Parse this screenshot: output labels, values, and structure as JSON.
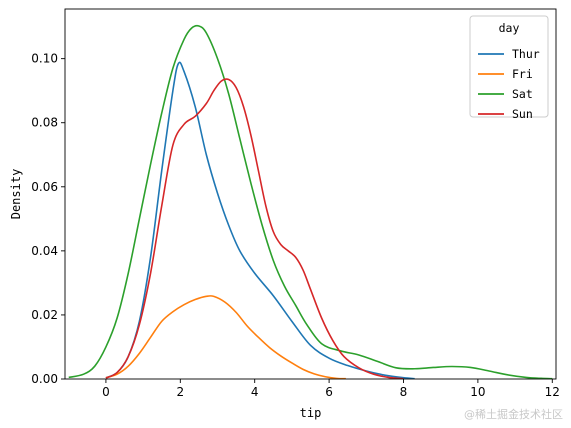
{
  "chart_data": {
    "type": "line",
    "xlabel": "tip",
    "ylabel": "Density",
    "xlim": [
      -1.1,
      12.1
    ],
    "ylim": [
      0,
      0.1155
    ],
    "x_ticks": [
      0,
      2,
      4,
      6,
      8,
      10,
      12
    ],
    "x_tick_labels": [
      "0",
      "2",
      "4",
      "6",
      "8",
      "10",
      "12"
    ],
    "y_ticks": [
      0,
      0.02,
      0.04,
      0.06,
      0.08,
      0.1
    ],
    "y_tick_labels": [
      "0.00",
      "0.02",
      "0.04",
      "0.06",
      "0.08",
      "0.10"
    ],
    "grid": false,
    "legend": {
      "title": "day",
      "position": "top-right"
    },
    "series": [
      {
        "name": "Thur",
        "color": "#1f77b4",
        "x": [
          0.0,
          0.3,
          0.6,
          0.9,
          1.2,
          1.5,
          1.8,
          1.95,
          2.1,
          2.4,
          2.7,
          3.0,
          3.3,
          3.6,
          4.0,
          4.5,
          5.0,
          5.5,
          6.0,
          6.5,
          7.0,
          7.5,
          8.0,
          8.3
        ],
        "y": [
          0.0004,
          0.002,
          0.007,
          0.018,
          0.038,
          0.065,
          0.09,
          0.0985,
          0.096,
          0.085,
          0.07,
          0.058,
          0.048,
          0.04,
          0.033,
          0.026,
          0.018,
          0.0105,
          0.0065,
          0.0042,
          0.0025,
          0.0012,
          0.0004,
          0.0001
        ]
      },
      {
        "name": "Fri",
        "color": "#ff7f0e",
        "x": [
          0.0,
          0.3,
          0.6,
          0.9,
          1.2,
          1.5,
          1.8,
          2.1,
          2.4,
          2.7,
          2.9,
          3.2,
          3.5,
          3.8,
          4.1,
          4.4,
          4.7,
          5.0,
          5.3,
          5.6,
          5.9,
          6.2,
          6.45
        ],
        "y": [
          0.0004,
          0.0015,
          0.004,
          0.008,
          0.013,
          0.018,
          0.021,
          0.0232,
          0.0248,
          0.0258,
          0.0258,
          0.024,
          0.0208,
          0.0165,
          0.013,
          0.0098,
          0.0072,
          0.005,
          0.003,
          0.0016,
          0.0007,
          0.0002,
          0.0001
        ]
      },
      {
        "name": "Sat",
        "color": "#2ca02c",
        "x": [
          -1.0,
          -0.6,
          -0.3,
          0.0,
          0.3,
          0.6,
          0.9,
          1.2,
          1.5,
          1.8,
          2.1,
          2.3,
          2.5,
          2.7,
          3.0,
          3.3,
          3.6,
          3.9,
          4.2,
          4.5,
          4.8,
          5.1,
          5.4,
          5.8,
          6.3,
          6.8,
          7.3,
          7.8,
          8.3,
          8.8,
          9.3,
          9.8,
          10.3,
          10.8,
          11.3,
          11.7,
          12.0
        ],
        "y": [
          0.0005,
          0.0015,
          0.004,
          0.01,
          0.019,
          0.033,
          0.05,
          0.067,
          0.083,
          0.097,
          0.106,
          0.1095,
          0.1102,
          0.108,
          0.1,
          0.089,
          0.075,
          0.061,
          0.048,
          0.037,
          0.029,
          0.023,
          0.017,
          0.011,
          0.0088,
          0.0075,
          0.0055,
          0.0035,
          0.0032,
          0.0036,
          0.0039,
          0.0036,
          0.0025,
          0.0013,
          0.0005,
          0.0002,
          0.0001
        ]
      },
      {
        "name": "Sun",
        "color": "#d62728",
        "x": [
          0.0,
          0.3,
          0.6,
          0.9,
          1.2,
          1.5,
          1.8,
          2.1,
          2.4,
          2.7,
          2.9,
          3.1,
          3.3,
          3.5,
          3.7,
          3.9,
          4.1,
          4.3,
          4.5,
          4.7,
          4.9,
          5.1,
          5.3,
          5.5,
          5.8,
          6.1,
          6.4,
          6.8,
          7.2,
          7.6,
          8.0
        ],
        "y": [
          0.0003,
          0.002,
          0.007,
          0.017,
          0.033,
          0.054,
          0.073,
          0.0795,
          0.082,
          0.086,
          0.09,
          0.093,
          0.0935,
          0.091,
          0.085,
          0.076,
          0.065,
          0.054,
          0.046,
          0.042,
          0.04,
          0.038,
          0.034,
          0.028,
          0.019,
          0.012,
          0.007,
          0.0035,
          0.0015,
          0.0005,
          0.0001
        ]
      }
    ]
  },
  "watermark": "@稀土掘金技术社区"
}
